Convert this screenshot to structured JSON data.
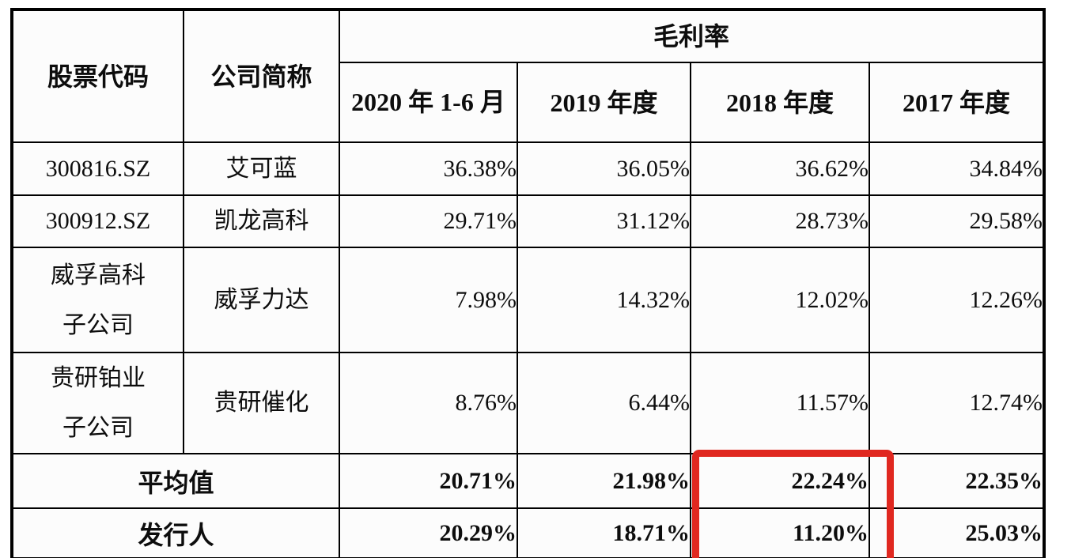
{
  "table": {
    "headers": {
      "stock_code": "股票代码",
      "company_short_name": "公司简称",
      "gross_margin_group": "毛利率",
      "period_2020_line1": "2020 年",
      "period_2020_line2": "1-6 月",
      "period_2019": "2019 年度",
      "period_2018": "2018 年度",
      "period_2017": "2017 年度"
    },
    "rows": [
      {
        "code": [
          "300816.SZ"
        ],
        "name": "艾可蓝",
        "v2020": "36.38%",
        "v2019": "36.05%",
        "v2018": "36.62%",
        "v2017": "34.84%"
      },
      {
        "code": [
          "300912.SZ"
        ],
        "name": "凯龙高科",
        "v2020": "29.71%",
        "v2019": "31.12%",
        "v2018": "28.73%",
        "v2017": "29.58%"
      },
      {
        "code": [
          "威孚高科",
          "子公司"
        ],
        "name": "威孚力达",
        "v2020": "7.98%",
        "v2019": "14.32%",
        "v2018": "12.02%",
        "v2017": "12.26%"
      },
      {
        "code": [
          "贵研铂业",
          "子公司"
        ],
        "name": "贵研催化",
        "v2020": "8.76%",
        "v2019": "6.44%",
        "v2018": "11.57%",
        "v2017": "12.74%"
      }
    ],
    "summary_rows": [
      {
        "label": "平均值",
        "v2020": "20.71%",
        "v2019": "21.98%",
        "v2018": "22.24%",
        "v2017": "22.35%"
      },
      {
        "label": "发行人",
        "v2020": "20.29%",
        "v2019": "18.71%",
        "v2018": "11.20%",
        "v2017": "25.03%"
      }
    ],
    "highlight": {
      "color": "#e02820"
    }
  }
}
